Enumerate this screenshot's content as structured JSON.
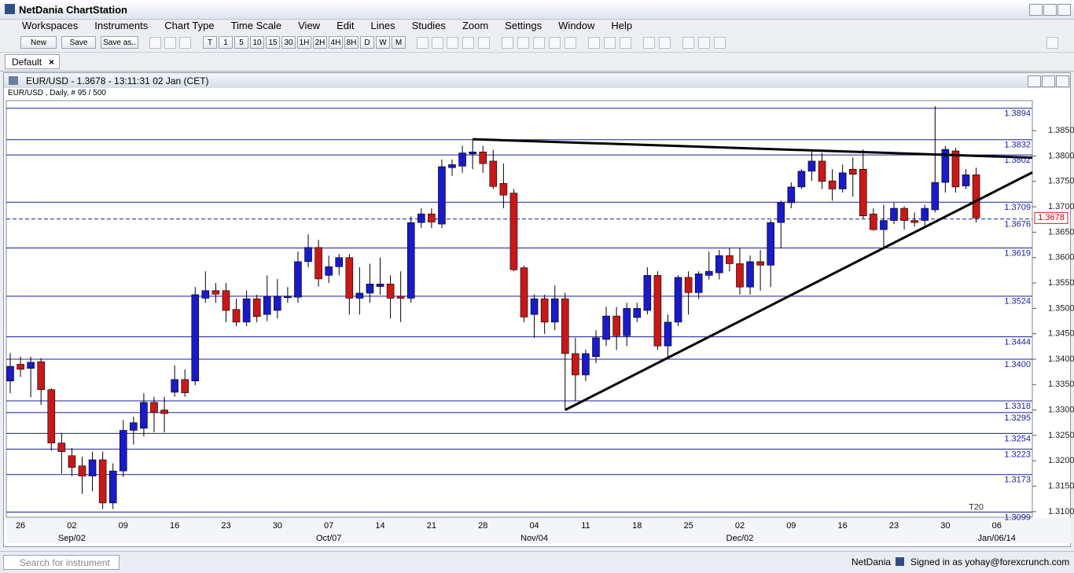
{
  "window": {
    "title": "NetDania ChartStation"
  },
  "menu": [
    "Workspaces",
    "Instruments",
    "Chart Type",
    "Time Scale",
    "View",
    "Edit",
    "Lines",
    "Studies",
    "Zoom",
    "Settings",
    "Window",
    "Help"
  ],
  "toolbar": {
    "buttons": [
      "New",
      "Save",
      "Save as.."
    ],
    "time_scales": [
      "T",
      "1",
      "5",
      "10",
      "15",
      "30",
      "1H",
      "2H",
      "4H",
      "8H",
      "D",
      "W",
      "M"
    ]
  },
  "tabs": [
    "Default"
  ],
  "chart_data": {
    "type": "candlestick",
    "title": "EUR/USD - 1.3678 - 13:11:31  02 Jan (CET)",
    "subtitle": "EUR/USD , Daily, # 95 / 500",
    "categories": [
      null,
      "26",
      null,
      null,
      null,
      null,
      "02",
      null,
      null,
      null,
      null,
      "09",
      null,
      null,
      null,
      null,
      "16",
      null,
      null,
      null,
      null,
      "23",
      null,
      null,
      null,
      null,
      "30",
      null,
      null,
      null,
      null,
      "07",
      null,
      null,
      null,
      null,
      "14",
      null,
      null,
      null,
      null,
      "21",
      null,
      null,
      null,
      null,
      "28",
      null,
      null,
      null,
      null,
      "04",
      null,
      null,
      null,
      null,
      "11",
      null,
      null,
      null,
      null,
      "18",
      null,
      null,
      null,
      null,
      "25",
      null,
      null,
      null,
      null,
      "02",
      null,
      null,
      null,
      null,
      "09",
      null,
      null,
      null,
      null,
      "16",
      null,
      null,
      null,
      null,
      "23",
      null,
      null,
      null,
      null,
      "30",
      null,
      null,
      null,
      null,
      "06"
    ],
    "category_sublabels": [
      null,
      null,
      null,
      null,
      null,
      null,
      "Sep/02",
      null,
      null,
      null,
      null,
      null,
      null,
      null,
      null,
      null,
      null,
      null,
      null,
      null,
      null,
      null,
      null,
      null,
      null,
      null,
      null,
      null,
      null,
      null,
      null,
      "Oct/07",
      null,
      null,
      null,
      null,
      null,
      null,
      null,
      null,
      null,
      null,
      null,
      null,
      null,
      null,
      null,
      null,
      null,
      null,
      null,
      "Nov/04",
      null,
      null,
      null,
      null,
      null,
      null,
      null,
      null,
      null,
      null,
      null,
      null,
      null,
      null,
      null,
      null,
      null,
      null,
      null,
      "Dec/02",
      null,
      null,
      null,
      null,
      null,
      null,
      null,
      null,
      null,
      null,
      null,
      null,
      null,
      null,
      null,
      null,
      null,
      null,
      null,
      null,
      null,
      null,
      null,
      null,
      "Jan/06/14"
    ],
    "open": [
      1.3357,
      1.339,
      1.3382,
      1.3395,
      1.334,
      1.3235,
      1.321,
      1.319,
      1.317,
      1.3202,
      1.3117,
      1.318,
      1.326,
      1.3264,
      1.3315,
      1.33,
      1.3335,
      1.336,
      1.3357,
      1.352,
      1.3535,
      1.3535,
      1.3498,
      1.3473,
      1.3519,
      1.3488,
      1.3496,
      1.3521,
      1.3522,
      1.3592,
      1.362,
      1.3565,
      1.3582,
      1.36,
      1.352,
      1.353,
      1.3543,
      1.3548,
      1.3524,
      1.352,
      1.3669,
      1.3686,
      1.3666,
      1.3777,
      1.378,
      1.3804,
      1.3808,
      1.379,
      1.3746,
      1.3727,
      1.358,
      1.3488,
      1.3519,
      1.3473,
      1.3519,
      1.3411,
      1.3369,
      1.3405,
      1.3439,
      1.3485,
      1.3446,
      1.3482,
      1.3496,
      1.3565,
      1.3426,
      1.3473,
      1.3561,
      1.3531,
      1.3565,
      1.357,
      1.3604,
      1.3588,
      1.3542,
      1.3592,
      1.3585,
      1.3669,
      1.3708,
      1.3739,
      1.377,
      1.379,
      1.3751,
      1.3735,
      1.3774,
      1.3774,
      1.3686,
      1.3655,
      1.3673,
      1.3697,
      1.3673,
      1.3673,
      1.3694,
      1.3748,
      1.381,
      1.3741,
      1.3763,
      null,
      null
    ],
    "high": [
      1.3412,
      1.3405,
      1.3405,
      1.3402,
      1.3343,
      1.3255,
      1.3225,
      1.3208,
      1.3218,
      1.3218,
      1.3195,
      1.328,
      1.3287,
      1.3333,
      1.3326,
      1.3326,
      1.3388,
      1.338,
      1.3542,
      1.3573,
      1.355,
      1.355,
      1.3519,
      1.3535,
      1.3527,
      1.3565,
      1.3558,
      1.3542,
      1.3612,
      1.3646,
      1.3635,
      1.3604,
      1.3607,
      1.3607,
      1.3581,
      1.3588,
      1.36,
      1.3565,
      1.3573,
      1.3681,
      1.3697,
      1.3697,
      1.3793,
      1.3793,
      1.382,
      1.3833,
      1.382,
      1.3812,
      1.3785,
      1.3735,
      1.3584,
      1.3527,
      1.3527,
      1.3545,
      1.3531,
      1.3442,
      1.3419,
      1.3457,
      1.3503,
      1.3503,
      1.3511,
      1.3511,
      1.3581,
      1.3573,
      1.3488,
      1.3565,
      1.3573,
      1.3573,
      1.3612,
      1.3615,
      1.3619,
      1.3619,
      1.3604,
      1.3615,
      1.3674,
      1.3712,
      1.3748,
      1.3774,
      1.3813,
      1.3806,
      1.3774,
      1.3783,
      1.3797,
      1.3813,
      1.3697,
      1.3704,
      1.3708,
      1.3701,
      1.3689,
      1.3704,
      1.3898,
      1.382,
      1.3816,
      1.3774,
      1.3777,
      null,
      null
    ],
    "low": [
      1.3333,
      1.3365,
      1.3325,
      1.331,
      1.322,
      1.3175,
      1.317,
      1.3135,
      1.314,
      1.3105,
      1.3105,
      1.3168,
      1.3232,
      1.3248,
      1.3256,
      1.3256,
      1.3326,
      1.3326,
      1.3349,
      1.3511,
      1.3511,
      1.3473,
      1.3465,
      1.3465,
      1.3473,
      1.3475,
      1.348,
      1.3511,
      1.3511,
      1.3581,
      1.3543,
      1.355,
      1.3565,
      1.3488,
      1.3488,
      1.3511,
      1.3527,
      1.348,
      1.3473,
      1.3511,
      1.3658,
      1.3658,
      1.3658,
      1.3761,
      1.3767,
      1.3774,
      1.3767,
      1.3735,
      1.3697,
      1.3573,
      1.3473,
      1.3442,
      1.345,
      1.3457,
      1.33,
      1.3318,
      1.3357,
      1.3392,
      1.3426,
      1.3418,
      1.3426,
      1.3473,
      1.3488,
      1.3418,
      1.3403,
      1.3465,
      1.3488,
      1.3519,
      1.3557,
      1.3557,
      1.3573,
      1.3527,
      1.3527,
      1.3535,
      1.3542,
      1.3619,
      1.3697,
      1.3735,
      1.3751,
      1.3735,
      1.3712,
      1.3728,
      1.372,
      1.3677,
      1.3653,
      1.3619,
      1.3666,
      1.3655,
      1.3661,
      1.3663,
      1.3689,
      1.3728,
      1.3728,
      1.3735,
      1.3669,
      null,
      null
    ],
    "close": [
      1.3386,
      1.338,
      1.3394,
      1.334,
      1.3235,
      1.3218,
      1.3187,
      1.317,
      1.3202,
      1.3117,
      1.318,
      1.326,
      1.3275,
      1.3315,
      1.3295,
      1.3293,
      1.336,
      1.3334,
      1.3527,
      1.3535,
      1.3528,
      1.3496,
      1.3473,
      1.3519,
      1.3484,
      1.3524,
      1.3524,
      1.3524,
      1.3592,
      1.362,
      1.3558,
      1.3582,
      1.36,
      1.352,
      1.353,
      1.3548,
      1.3548,
      1.352,
      1.352,
      1.3669,
      1.3686,
      1.367,
      1.3779,
      1.3783,
      1.3806,
      1.3808,
      1.3785,
      1.374,
      1.3723,
      1.3576,
      1.3483,
      1.3519,
      1.3473,
      1.3519,
      1.3411,
      1.3369,
      1.3411,
      1.3442,
      1.3485,
      1.3446,
      1.35,
      1.35,
      1.3565,
      1.3426,
      1.3473,
      1.3561,
      1.3531,
      1.3568,
      1.3573,
      1.3604,
      1.3588,
      1.3542,
      1.3592,
      1.3585,
      1.3669,
      1.3708,
      1.3739,
      1.377,
      1.379,
      1.375,
      1.3735,
      1.3767,
      1.3764,
      1.3682,
      1.3655,
      1.3673,
      1.3697,
      1.3673,
      1.3669,
      1.3697,
      1.3748,
      1.3813,
      1.3739,
      1.3763,
      1.3678,
      null,
      null
    ],
    "up_color": "#1a1ac8",
    "down_color": "#c81818",
    "ylim": [
      1.3089,
      1.3909
    ],
    "yticks": [
      {
        "value": 1.31,
        "label": "1.3100"
      },
      {
        "value": 1.315,
        "label": "1.3150"
      },
      {
        "value": 1.32,
        "label": "1.3200"
      },
      {
        "value": 1.325,
        "label": "1.3250"
      },
      {
        "value": 1.33,
        "label": "1.3300"
      },
      {
        "value": 1.335,
        "label": "1.3350"
      },
      {
        "value": 1.34,
        "label": "1.3400"
      },
      {
        "value": 1.345,
        "label": "1.3450"
      },
      {
        "value": 1.35,
        "label": "1.3500"
      },
      {
        "value": 1.355,
        "label": "1.3550"
      },
      {
        "value": 1.36,
        "label": "1.3600"
      },
      {
        "value": 1.365,
        "label": "1.3650"
      },
      {
        "value": 1.37,
        "label": "1.3700"
      },
      {
        "value": 1.375,
        "label": "1.3750"
      },
      {
        "value": 1.38,
        "label": "1.3800"
      },
      {
        "value": 1.385,
        "label": "1.3850"
      }
    ],
    "levels": [
      1.3894,
      1.3832,
      1.3802,
      1.3709,
      {
        "value": 1.3676,
        "style": "dashed"
      },
      1.3619,
      1.3524,
      1.3444,
      {
        "value": 1.34,
        "label": "1.3400"
      },
      1.3318,
      1.3295,
      1.3254,
      1.3223,
      1.3173,
      1.3099
    ],
    "level_color": "#1c1c9a",
    "current_price": 1.3678,
    "trendlines": [
      {
        "start": [
          45,
          1.3833
        ],
        "end": [
          96,
          1.3799
        ]
      },
      {
        "start": [
          54,
          1.33
        ],
        "end": [
          96,
          1.3732
        ]
      }
    ],
    "annotations": [
      {
        "text": "T20",
        "index": 94,
        "value": 1.3099
      }
    ]
  },
  "status_bar": {
    "search_placeholder": "Search for instrument",
    "brand": "NetDania",
    "signed_in": "Signed in as yohay@forexcrunch.com"
  }
}
